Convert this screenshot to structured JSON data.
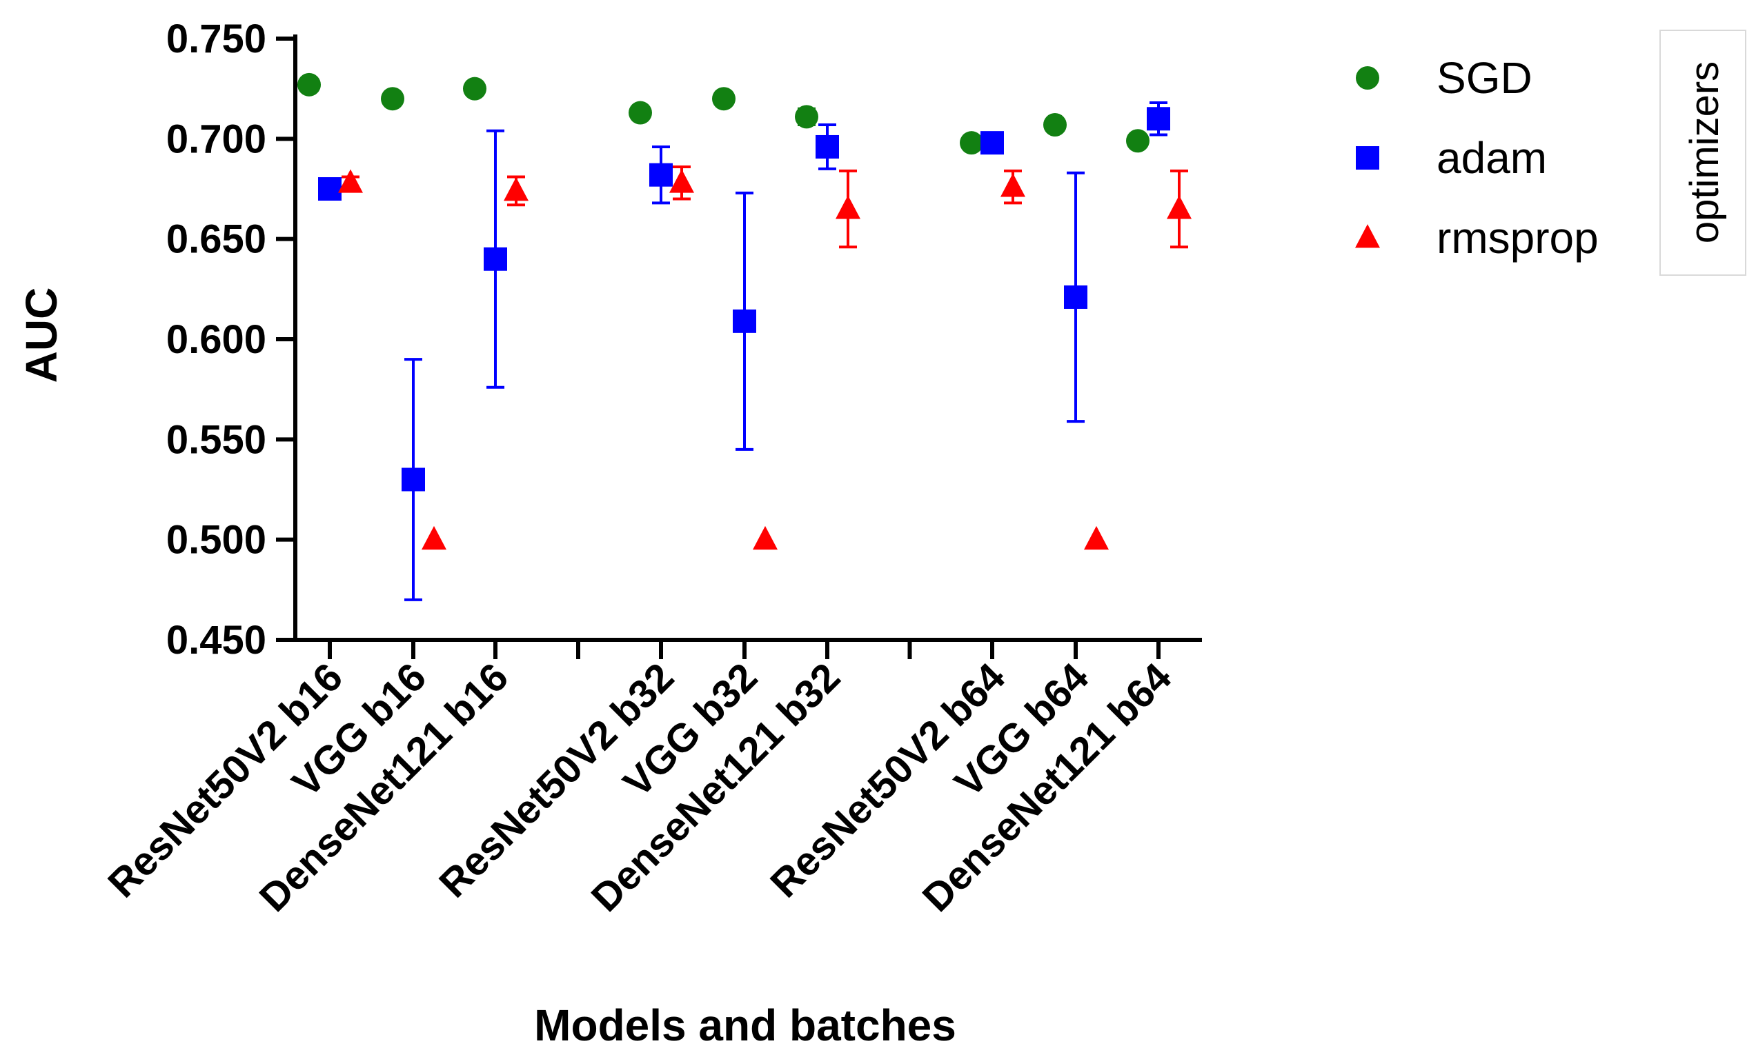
{
  "chart_data": {
    "type": "scatter",
    "title": "",
    "xlabel": "Models and batches",
    "ylabel": "AUC",
    "ylim": [
      0.45,
      0.75
    ],
    "yticks": [
      "0.450",
      "0.500",
      "0.550",
      "0.600",
      "0.650",
      "0.700",
      "0.750"
    ],
    "categories": [
      "ResNet50V2 b16",
      "VGG b16",
      "DenseNet121 b16",
      "ResNet50V2 b32",
      "VGG b32",
      "DenseNet121 b32",
      "ResNet50V2 b64",
      "VGG b64",
      "DenseNet121 b64"
    ],
    "grid": false,
    "legend_title": "optimizers",
    "legend_position": "top-right",
    "series": [
      {
        "name": "SGD",
        "marker": "circle",
        "color": "#128012",
        "values": [
          0.727,
          0.72,
          0.725,
          0.713,
          0.72,
          0.711,
          0.698,
          0.707,
          0.699
        ],
        "errors": [
          0,
          0,
          0,
          0.002,
          0,
          0.004,
          0,
          0,
          0
        ]
      },
      {
        "name": "adam",
        "marker": "square",
        "color": "#0000ff",
        "values": [
          0.675,
          0.53,
          0.64,
          0.682,
          0.609,
          0.696,
          0.698,
          0.621,
          0.71
        ],
        "errors": [
          0.003,
          0.06,
          0.064,
          0.014,
          0.064,
          0.011,
          0,
          0.062,
          0.008
        ]
      },
      {
        "name": "rmsprop",
        "marker": "triangle",
        "color": "#ff0000",
        "values": [
          0.678,
          0.5,
          0.674,
          0.678,
          0.5,
          0.665,
          0.676,
          0.5,
          0.665
        ],
        "errors": [
          0.003,
          0,
          0.007,
          0.008,
          0,
          0.019,
          0.008,
          0,
          0.019
        ]
      }
    ]
  }
}
